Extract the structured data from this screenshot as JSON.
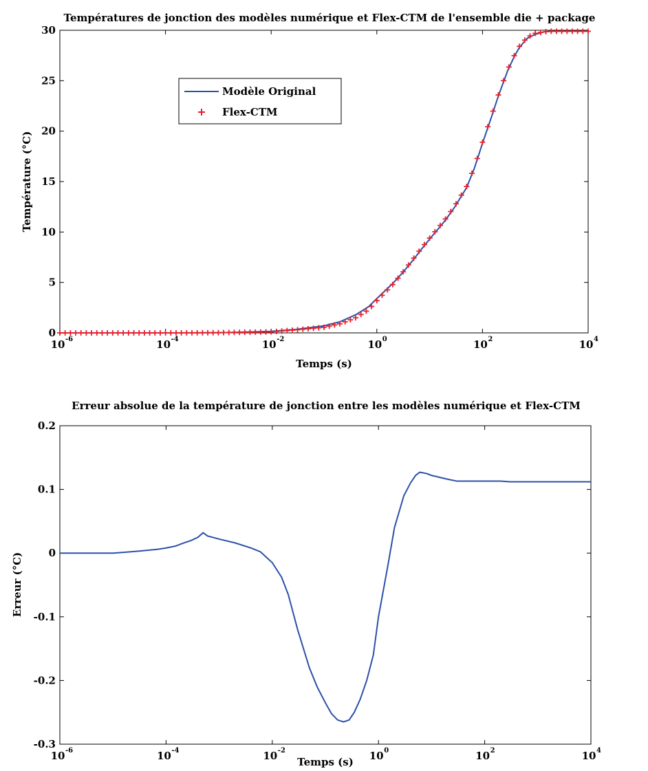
{
  "chart_data": [
    {
      "type": "line",
      "title": "Températures de jonction des modèles numérique et Flex-CTM de l'ensemble die + package",
      "xlabel": "Temps (s)",
      "ylabel": "Température (°C)",
      "xscale": "log",
      "xlim": [
        1e-06,
        10000.0
      ],
      "ylim": [
        0,
        30
      ],
      "xticks": [
        {
          "base": "10",
          "exp": "-6",
          "value": 1e-06
        },
        {
          "base": "10",
          "exp": "-4",
          "value": 0.0001
        },
        {
          "base": "10",
          "exp": "-2",
          "value": 0.01
        },
        {
          "base": "10",
          "exp": "0",
          "value": 1
        },
        {
          "base": "10",
          "exp": "2",
          "value": 100
        },
        {
          "base": "10",
          "exp": "4",
          "value": 10000
        }
      ],
      "yticks": [
        "0",
        "5",
        "10",
        "15",
        "20",
        "25",
        "30"
      ],
      "legend_position": "top-left",
      "series": [
        {
          "name": "Modèle Original",
          "style": "line",
          "color": "#2b4fa8",
          "x": [
            1e-06,
            0.0001,
            0.001,
            0.01,
            0.03,
            0.1,
            0.2,
            0.4,
            0.7,
            1,
            2,
            3,
            5,
            7,
            10,
            15,
            20,
            30,
            50,
            70,
            100,
            150,
            200,
            300,
            400,
            500,
            700,
            1000,
            1500,
            2000,
            3000,
            5000,
            10000
          ],
          "y": [
            0,
            0,
            0.02,
            0.15,
            0.35,
            0.7,
            1.1,
            1.8,
            2.6,
            3.4,
            4.9,
            5.9,
            7.3,
            8.3,
            9.3,
            10.4,
            11.2,
            12.5,
            14.4,
            16.3,
            18.8,
            21.5,
            23.5,
            26.0,
            27.4,
            28.3,
            29.2,
            29.6,
            29.85,
            29.9,
            29.9,
            29.9,
            29.9
          ]
        },
        {
          "name": "Flex-CTM",
          "style": "markers",
          "marker": "+",
          "color": "#e8202a",
          "x": [
            1e-06,
            0.0001,
            0.001,
            0.01,
            0.03,
            0.1,
            0.2,
            0.4,
            0.7,
            1,
            2,
            3,
            5,
            7,
            10,
            15,
            20,
            30,
            50,
            70,
            100,
            150,
            200,
            300,
            400,
            500,
            700,
            1000,
            1500,
            2000,
            3000,
            5000,
            10000
          ],
          "y": [
            0,
            0,
            0.02,
            0.1,
            0.3,
            0.55,
            0.9,
            1.5,
            2.3,
            3.2,
            4.8,
            5.9,
            7.4,
            8.4,
            9.4,
            10.5,
            11.3,
            12.6,
            14.5,
            16.4,
            18.9,
            21.6,
            23.6,
            26.1,
            27.5,
            28.4,
            29.3,
            29.7,
            29.85,
            29.9,
            29.9,
            29.9,
            29.9
          ]
        }
      ]
    },
    {
      "type": "line",
      "title": "Erreur absolue de la température de jonction entre les modèles numérique et Flex-CTM",
      "xlabel": "Temps (s)",
      "ylabel": "Erreur (°C)",
      "xscale": "log",
      "xlim": [
        1e-06,
        10000.0
      ],
      "ylim": [
        -0.3,
        0.2
      ],
      "xticks": [
        {
          "base": "10",
          "exp": "-6",
          "value": 1e-06
        },
        {
          "base": "10",
          "exp": "-4",
          "value": 0.0001
        },
        {
          "base": "10",
          "exp": "-2",
          "value": 0.01
        },
        {
          "base": "10",
          "exp": "0",
          "value": 1
        },
        {
          "base": "10",
          "exp": "2",
          "value": 100
        },
        {
          "base": "10",
          "exp": "4",
          "value": 10000
        }
      ],
      "yticks": [
        "0.2",
        "0.1",
        "0",
        "-0.1",
        "-0.2",
        "-0.3"
      ],
      "series": [
        {
          "style": "line",
          "color": "#2b4fa8",
          "x": [
            1e-06,
            1e-05,
            1.5e-05,
            3e-05,
            7e-05,
            0.0001,
            0.00015,
            0.0002,
            0.0003,
            0.0004,
            0.0005,
            0.0006,
            0.001,
            0.002,
            0.004,
            0.006,
            0.01,
            0.015,
            0.02,
            0.03,
            0.05,
            0.07,
            0.1,
            0.13,
            0.17,
            0.22,
            0.28,
            0.35,
            0.45,
            0.6,
            0.8,
            1,
            1.5,
            2,
            3,
            4,
            5,
            6,
            8,
            10,
            20,
            30,
            50,
            100,
            200,
            300,
            1000,
            10000
          ],
          "y": [
            0,
            0,
            0.001,
            0.003,
            0.006,
            0.008,
            0.011,
            0.015,
            0.02,
            0.025,
            0.032,
            0.027,
            0.022,
            0.016,
            0.008,
            0.002,
            -0.015,
            -0.038,
            -0.065,
            -0.12,
            -0.18,
            -0.21,
            -0.235,
            -0.252,
            -0.262,
            -0.265,
            -0.262,
            -0.25,
            -0.23,
            -0.2,
            -0.16,
            -0.1,
            -0.02,
            0.04,
            0.09,
            0.11,
            0.122,
            0.127,
            0.125,
            0.122,
            0.116,
            0.113,
            0.113,
            0.113,
            0.113,
            0.112,
            0.112,
            0.112
          ]
        }
      ]
    }
  ]
}
